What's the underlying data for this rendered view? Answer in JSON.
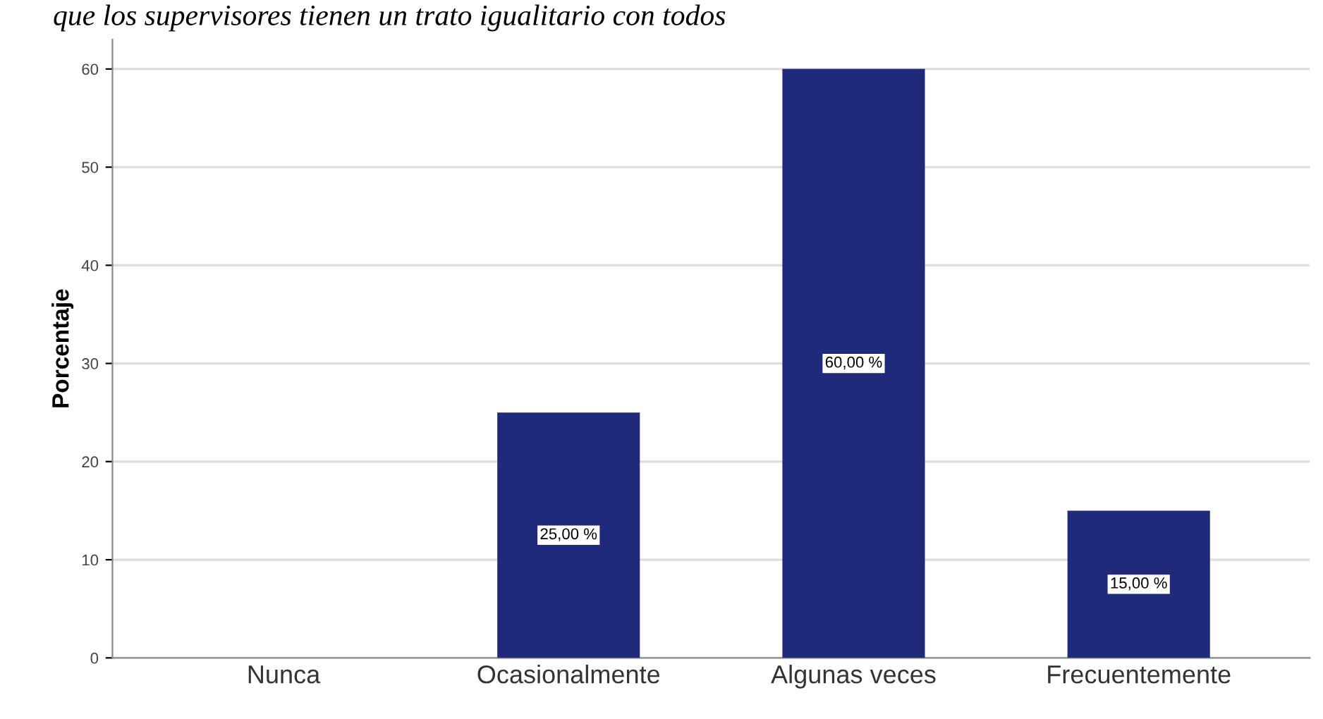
{
  "chart_data": {
    "type": "bar",
    "title": "que los supervisores tienen un trato igualitario con todos",
    "ylabel": "Porcentaje",
    "categories": [
      "Nunca",
      "Ocasionalmente",
      "Algunas veces",
      "Frecuentemente"
    ],
    "values": [
      0,
      25,
      60,
      15
    ],
    "value_labels": [
      null,
      "25,00 %",
      "60,00 %",
      "15,00 %"
    ],
    "color": "#1f2a7a",
    "ylim": [
      0,
      63
    ],
    "yticks": [
      0,
      10,
      20,
      30,
      40,
      50,
      60
    ],
    "grid": "y"
  }
}
